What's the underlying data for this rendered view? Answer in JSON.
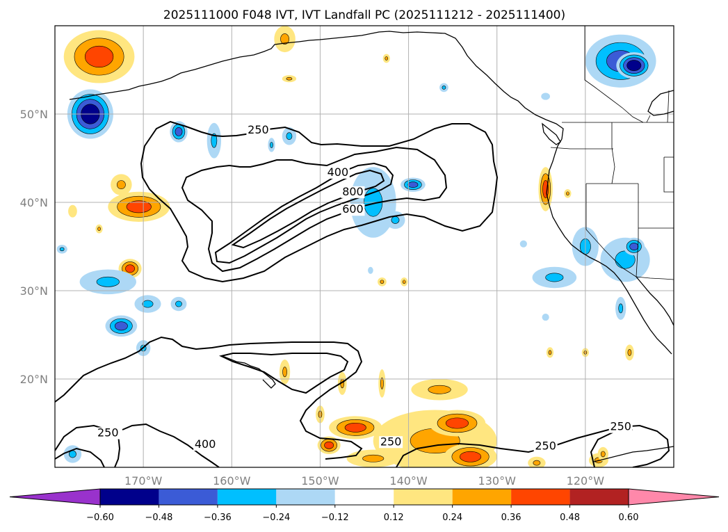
{
  "chart_data": {
    "type": "contour_map",
    "title": "2025111000 F048 IVT, IVT Landfall PC (2025111212 - 2025111400)",
    "lon_range": [
      -180,
      -110
    ],
    "lat_range": [
      10,
      60
    ],
    "x_ticks": [
      {
        "lon": -170,
        "label": "170°W"
      },
      {
        "lon": -160,
        "label": "160°W"
      },
      {
        "lon": -150,
        "label": "150°W"
      },
      {
        "lon": -140,
        "label": "140°W"
      },
      {
        "lon": -130,
        "label": "130°W"
      },
      {
        "lon": -120,
        "label": "120°W"
      }
    ],
    "y_ticks": [
      {
        "lat": 50,
        "label": "50°N"
      },
      {
        "lat": 40,
        "label": "40°N"
      },
      {
        "lat": 30,
        "label": "30°N"
      },
      {
        "lat": 20,
        "label": "20°N"
      }
    ],
    "ivt_contour_labels": [
      {
        "label": "250",
        "lon": -157,
        "lat": 47.8
      },
      {
        "label": "400",
        "lon": -148,
        "lat": 43.0
      },
      {
        "label": "800",
        "lon": -146.3,
        "lat": 40.8
      },
      {
        "label": "600",
        "lon": -146.3,
        "lat": 38.8
      },
      {
        "label": "250",
        "lon": -174,
        "lat": 13.5
      },
      {
        "label": "400",
        "lon": -163,
        "lat": 12.2
      },
      {
        "label": "250",
        "lon": -142,
        "lat": 12.5
      },
      {
        "label": "250",
        "lon": -124.5,
        "lat": 12.0
      },
      {
        "label": "250",
        "lon": -116,
        "lat": 14.2
      }
    ],
    "ivt_levels": [
      250,
      400,
      600,
      800
    ],
    "colorbar": {
      "boundaries": [
        -0.6,
        -0.48,
        -0.36,
        -0.24,
        -0.12,
        0.12,
        0.24,
        0.36,
        0.48,
        0.6
      ],
      "tick_labels": [
        "−0.60",
        "−0.48",
        "−0.36",
        "−0.24",
        "−0.12",
        "0.12",
        "0.24",
        "0.36",
        "0.48",
        "0.60"
      ],
      "colors": [
        "#9932cc",
        "#00008b",
        "#3b5bd6",
        "#00bfff",
        "#add8f5",
        "#ffffff",
        "#ffe680",
        "#ffa500",
        "#ff4500",
        "#b22222",
        "#ff88aa"
      ],
      "extend": "both"
    },
    "pc_regions": [
      {
        "center": [
          -175,
          56.5
        ],
        "radius": [
          4,
          3
        ],
        "value": 0.38
      },
      {
        "center": [
          -176,
          50
        ],
        "radius": [
          2.6,
          2.8
        ],
        "value": -0.5
      },
      {
        "center": [
          -172.5,
          42
        ],
        "radius": [
          1.2,
          1.2
        ],
        "value": 0.3
      },
      {
        "center": [
          -170.5,
          39.5
        ],
        "radius": [
          3.5,
          1.7
        ],
        "value": 0.38
      },
      {
        "center": [
          -178,
          39
        ],
        "radius": [
          0.5,
          0.7
        ],
        "value": 0.2
      },
      {
        "center": [
          -171.5,
          32.5
        ],
        "radius": [
          1.3,
          1.1
        ],
        "value": 0.4
      },
      {
        "center": [
          -174,
          31
        ],
        "radius": [
          3.2,
          1.4
        ],
        "value": -0.3
      },
      {
        "center": [
          -169.5,
          28.5
        ],
        "radius": [
          1.5,
          1
        ],
        "value": -0.28
      },
      {
        "center": [
          -166,
          28.5
        ],
        "radius": [
          0.9,
          0.8
        ],
        "value": -0.28
      },
      {
        "center": [
          -172.5,
          26
        ],
        "radius": [
          1.8,
          1.2
        ],
        "value": -0.4
      },
      {
        "center": [
          -170,
          23.5
        ],
        "radius": [
          0.8,
          0.9
        ],
        "value": -0.28
      },
      {
        "center": [
          -166,
          48
        ],
        "radius": [
          1,
          1.2
        ],
        "value": -0.4
      },
      {
        "center": [
          -162,
          47
        ],
        "radius": [
          0.8,
          2
        ],
        "value": -0.28
      },
      {
        "center": [
          -153.5,
          47.5
        ],
        "radius": [
          0.8,
          1
        ],
        "value": -0.28
      },
      {
        "center": [
          -155.5,
          46.5
        ],
        "radius": [
          0.4,
          0.8
        ],
        "value": -0.28
      },
      {
        "center": [
          -144,
          40
        ],
        "radius": [
          2.6,
          4
        ],
        "value": -0.3
      },
      {
        "center": [
          -139.5,
          42
        ],
        "radius": [
          1.4,
          0.8
        ],
        "value": -0.42
      },
      {
        "center": [
          -141.5,
          38
        ],
        "radius": [
          1.1,
          1
        ],
        "value": -0.3
      },
      {
        "center": [
          -124.5,
          41.5
        ],
        "radius": [
          0.8,
          2.5
        ],
        "value": 0.38
      },
      {
        "center": [
          -122,
          41
        ],
        "radius": [
          0.4,
          0.5
        ],
        "value": 0.35
      },
      {
        "center": [
          -120,
          35
        ],
        "radius": [
          1.5,
          2.2
        ],
        "value": -0.3
      },
      {
        "center": [
          -123.5,
          31.5
        ],
        "radius": [
          2.5,
          1.2
        ],
        "value": -0.3
      },
      {
        "center": [
          -115.5,
          33.5
        ],
        "radius": [
          2.8,
          2.5
        ],
        "value": -0.33
      },
      {
        "center": [
          -114.5,
          35
        ],
        "radius": [
          1.2,
          1
        ],
        "value": -0.45
      },
      {
        "center": [
          -116,
          28
        ],
        "radius": [
          0.6,
          1.3
        ],
        "value": -0.28
      },
      {
        "center": [
          -115,
          23
        ],
        "radius": [
          0.5,
          0.9
        ],
        "value": 0.35
      },
      {
        "center": [
          -116,
          56
        ],
        "radius": [
          4,
          3
        ],
        "value": -0.4
      },
      {
        "center": [
          -114.5,
          55.5
        ],
        "radius": [
          2,
          1.5
        ],
        "value": -0.55
      },
      {
        "center": [
          -143,
          19.5
        ],
        "radius": [
          0.4,
          1.6
        ],
        "value": 0.3
      },
      {
        "center": [
          -147.5,
          19.5
        ],
        "radius": [
          0.5,
          1.3
        ],
        "value": 0.35
      },
      {
        "center": [
          -150,
          16
        ],
        "radius": [
          0.5,
          1
        ],
        "value": 0.35
      },
      {
        "center": [
          -149,
          12.5
        ],
        "radius": [
          1.3,
          1
        ],
        "value": 0.38
      },
      {
        "center": [
          -146,
          14.5
        ],
        "radius": [
          3,
          1.3
        ],
        "value": 0.38
      },
      {
        "center": [
          -136.5,
          18.8
        ],
        "radius": [
          3.2,
          1.2
        ],
        "value": 0.33
      },
      {
        "center": [
          -137,
          13
        ],
        "radius": [
          7,
          3.5
        ],
        "value": 0.3
      },
      {
        "center": [
          -134.5,
          15
        ],
        "radius": [
          3.2,
          1.5
        ],
        "value": 0.4
      },
      {
        "center": [
          -133,
          11.2
        ],
        "radius": [
          3,
          1.5
        ],
        "value": 0.38
      },
      {
        "center": [
          -144,
          11
        ],
        "radius": [
          3,
          1
        ],
        "value": 0.3
      },
      {
        "center": [
          -178,
          11.5
        ],
        "radius": [
          1,
          1
        ],
        "value": -0.3
      },
      {
        "center": [
          -125.5,
          10.5
        ],
        "radius": [
          1,
          0.7
        ],
        "value": 0.35
      },
      {
        "center": [
          -118.5,
          10.8
        ],
        "radius": [
          1.1,
          0.8
        ],
        "value": 0.35
      },
      {
        "center": [
          -118,
          11.5
        ],
        "radius": [
          0.6,
          0.8
        ],
        "value": 0.35
      },
      {
        "center": [
          -124,
          23
        ],
        "radius": [
          0.4,
          0.6
        ],
        "value": 0.3
      },
      {
        "center": [
          -120,
          23
        ],
        "radius": [
          0.4,
          0.5
        ],
        "value": 0.25
      },
      {
        "center": [
          -143,
          31
        ],
        "radius": [
          0.5,
          0.5
        ],
        "value": 0.3
      },
      {
        "center": [
          -140.5,
          31
        ],
        "radius": [
          0.4,
          0.5
        ],
        "value": 0.3
      },
      {
        "center": [
          -144.3,
          32.3
        ],
        "radius": [
          0.3,
          0.4
        ],
        "value": -0.2
      },
      {
        "center": [
          -136,
          53
        ],
        "radius": [
          0.5,
          0.5
        ],
        "value": -0.28
      },
      {
        "center": [
          -142.5,
          56.3
        ],
        "radius": [
          0.4,
          0.5
        ],
        "value": 0.25
      },
      {
        "center": [
          -153.5,
          54
        ],
        "radius": [
          0.8,
          0.4
        ],
        "value": 0.28
      },
      {
        "center": [
          -154,
          58.5
        ],
        "radius": [
          1.2,
          1.5
        ],
        "value": 0.25
      },
      {
        "center": [
          -175,
          37
        ],
        "radius": [
          0.4,
          0.5
        ],
        "value": 0.3
      },
      {
        "center": [
          -179.2,
          34.7
        ],
        "radius": [
          0.6,
          0.5
        ],
        "value": -0.28
      },
      {
        "center": [
          -124.5,
          52
        ],
        "radius": [
          0.5,
          0.4
        ],
        "value": -0.2
      },
      {
        "center": [
          -154,
          20.8
        ],
        "radius": [
          0.6,
          1.4
        ],
        "value": 0.3
      },
      {
        "center": [
          -124.5,
          27
        ],
        "radius": [
          0.4,
          0.4
        ],
        "value": -0.2
      },
      {
        "center": [
          -127,
          35.3
        ],
        "radius": [
          0.4,
          0.4
        ],
        "value": -0.2
      }
    ]
  }
}
